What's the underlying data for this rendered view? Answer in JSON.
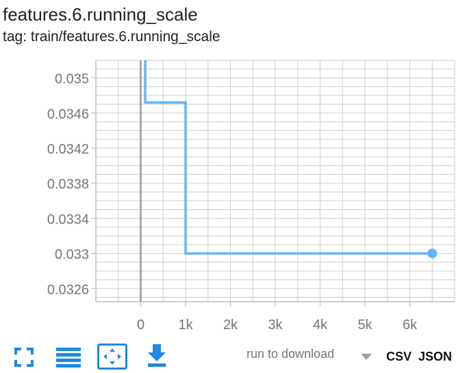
{
  "card": {
    "title": "features.6.running_scale",
    "tag": "tag: train/features.6.running_scale"
  },
  "toolbar": {
    "fullscreen_icon": "expand-icon",
    "data_table_icon": "table-lines-icon",
    "fit_domain_icon": "fit-to-data-icon",
    "download_icon": "download-icon",
    "run_to_download": "run to download",
    "formats": [
      "CSV",
      "JSON"
    ]
  },
  "colors": {
    "series": "#64b5f6",
    "grid": "#d4d4d4",
    "zero_axis": "#9a9a9a",
    "toolbar_blue": "#1e88e5"
  },
  "chart_data": {
    "type": "line",
    "title": "features.6.running_scale",
    "step": true,
    "xlim": [
      -1000,
      7000
    ],
    "ylim": [
      0.03245,
      0.0352
    ],
    "x_ticks": [
      0,
      1000,
      2000,
      3000,
      4000,
      5000,
      6000
    ],
    "x_tick_labels": [
      "0",
      "1k",
      "2k",
      "3k",
      "4k",
      "5k",
      "6k"
    ],
    "y_ticks": [
      0.0326,
      0.033,
      0.0334,
      0.0338,
      0.0342,
      0.0346,
      0.035
    ],
    "y_tick_labels": [
      "0.0326",
      "0.033",
      "0.0334",
      "0.0338",
      "0.0342",
      "0.0346",
      "0.035"
    ],
    "grid": true,
    "series": [
      {
        "x": [
          100,
          100,
          1000,
          1000,
          6500
        ],
        "y": [
          0.0352,
          0.03472,
          0.03472,
          0.033,
          0.033
        ]
      }
    ]
  }
}
